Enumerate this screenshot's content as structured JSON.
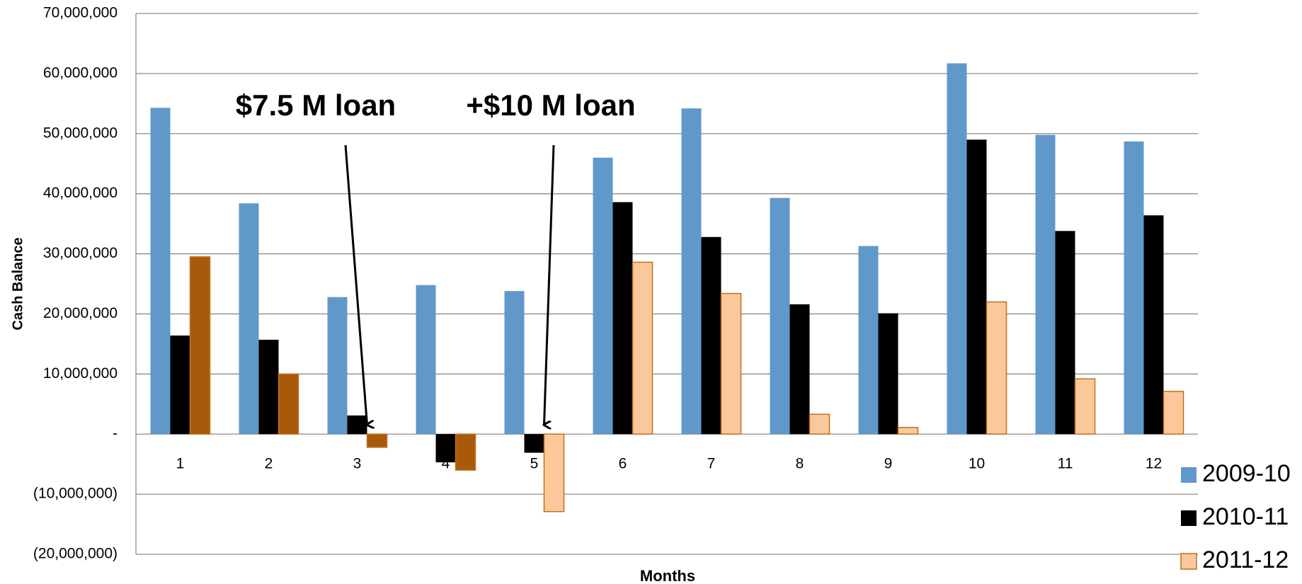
{
  "chart_data": {
    "type": "bar",
    "y_label": "Cash Balance",
    "x_label": "Months",
    "annotations": [
      "$7.5 M loan",
      "+$10 M loan"
    ],
    "categories": [
      "1",
      "2",
      "3",
      "4",
      "5",
      "6",
      "7",
      "8",
      "9",
      "10",
      "11",
      "12"
    ],
    "series": [
      {
        "name": "2009-10",
        "color": "#6198ca",
        "values": [
          54300000,
          38400000,
          22800000,
          24800000,
          23800000,
          46000000,
          54200000,
          39300000,
          31300000,
          61700000,
          49800000,
          48700000
        ]
      },
      {
        "name": "2010-11",
        "color": "#000000",
        "values": [
          16400000,
          15700000,
          3100000,
          -4700000,
          -3100000,
          38600000,
          32800000,
          21600000,
          20100000,
          49000000,
          33800000,
          36400000
        ]
      },
      {
        "name": "2011-12",
        "color": "#fac89a",
        "edge": "#c0701e",
        "colors": [
          "#a85a0a",
          "#a85a0a",
          "#a85a0a",
          "#a85a0a",
          "#fac89a",
          "#fac89a",
          "#fac89a",
          "#fac89a",
          "#fac89a",
          "#fac89a",
          "#fac89a",
          "#fac89a"
        ],
        "values": [
          29500000,
          10000000,
          -2200000,
          -6000000,
          -12900000,
          28600000,
          23400000,
          3300000,
          1100000,
          22000000,
          9200000,
          7100000
        ]
      }
    ],
    "ylim": [
      -20000000,
      70000000
    ],
    "yticks": [
      {
        "value": -20000000,
        "label": "(20,000,000)"
      },
      {
        "value": -10000000,
        "label": "(10,000,000)"
      },
      {
        "value": 0,
        "label": "-"
      },
      {
        "value": 10000000,
        "label": "10,000,000"
      },
      {
        "value": 20000000,
        "label": "20,000,000"
      },
      {
        "value": 30000000,
        "label": "30,000,000"
      },
      {
        "value": 40000000,
        "label": "40,000,000"
      },
      {
        "value": 50000000,
        "label": "50,000,000"
      },
      {
        "value": 60000000,
        "label": "60,000,000"
      },
      {
        "value": 70000000,
        "label": "70,000,000"
      }
    ],
    "grid": true
  }
}
